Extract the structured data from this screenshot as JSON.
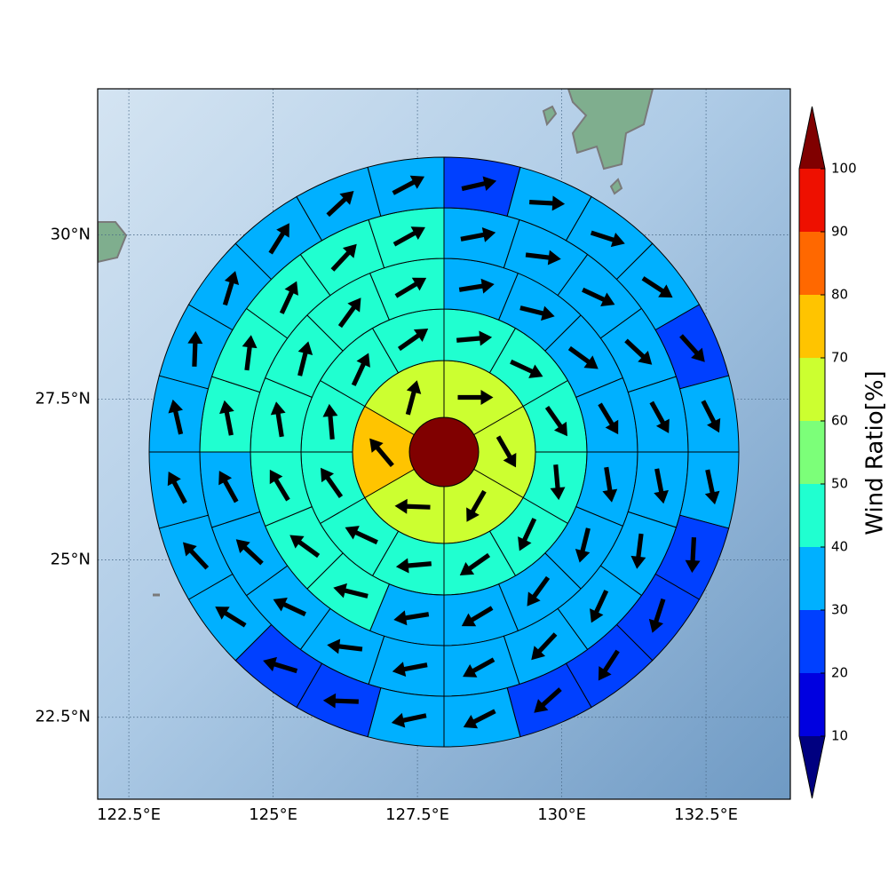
{
  "chart_data": {
    "type": "polar-grid-map",
    "projection": "mercator",
    "xlim": [
      121.96,
      133.96
    ],
    "ylim": [
      21.18,
      32.17
    ],
    "xticks": [
      {
        "value": 122.5,
        "label": "122.5°E"
      },
      {
        "value": 125,
        "label": "125°E"
      },
      {
        "value": 127.5,
        "label": "127.5°E"
      },
      {
        "value": 130,
        "label": "130°E"
      },
      {
        "value": 132.5,
        "label": "132.5°E"
      }
    ],
    "yticks": [
      {
        "value": 22.5,
        "label": "22.5°N"
      },
      {
        "value": 25,
        "label": "25°N"
      },
      {
        "value": 27.5,
        "label": "27.5°N"
      },
      {
        "value": 30,
        "label": "30°N"
      }
    ],
    "grid": true,
    "center": {
      "value": 100
    },
    "rings": [
      {
        "values": [
          65,
          65,
          65,
          65,
          75,
          65
        ],
        "directions": [
          0,
          -60,
          -120,
          178,
          130,
          75
        ]
      },
      {
        "values": [
          45,
          45,
          45,
          45,
          45,
          45,
          45,
          45,
          45,
          45,
          45,
          45
        ],
        "directions": [
          5,
          -25,
          -55,
          -85,
          -115,
          -145,
          -175,
          155,
          125,
          95,
          65,
          35
        ]
      },
      {
        "values": [
          35,
          35,
          35,
          35,
          35,
          35,
          35,
          35,
          35,
          45,
          45,
          45,
          45,
          45,
          45,
          45
        ],
        "directions": [
          9,
          -14,
          -36,
          -59,
          -81,
          -104,
          -126,
          -149,
          -171,
          166,
          144,
          121,
          99,
          76,
          54,
          31
        ]
      },
      {
        "values": [
          35,
          35,
          35,
          35,
          35,
          35,
          35,
          35,
          35,
          35,
          35,
          35,
          35,
          35,
          35,
          45,
          45,
          45,
          45,
          45
        ],
        "directions": [
          11,
          -7,
          -25,
          -43,
          -61,
          -79,
          -97,
          -115,
          -133,
          -151,
          -169,
          173,
          155,
          137,
          119,
          101,
          83,
          65,
          47,
          29
        ]
      },
      {
        "values": [
          25,
          35,
          35,
          35,
          25,
          35,
          35,
          25,
          25,
          25,
          25,
          35,
          35,
          25,
          25,
          35,
          35,
          35,
          35,
          35,
          35,
          35,
          35,
          35
        ],
        "directions": [
          13,
          -3,
          -18,
          -33,
          -48,
          -63,
          -78,
          -93,
          -108,
          -123,
          -138,
          -153,
          -168,
          178,
          163,
          148,
          133,
          118,
          103,
          88,
          73,
          58,
          43,
          28
        ]
      }
    ],
    "colorbar": {
      "label": "Wind Ratio[%]",
      "ticks": [
        10,
        20,
        30,
        40,
        50,
        60,
        70,
        80,
        90,
        100
      ],
      "colors": [
        "#000080",
        "#0000e0",
        "#0040ff",
        "#00b0ff",
        "#20ffd0",
        "#7cff79",
        "#ccff30",
        "#ffc400",
        "#ff6800",
        "#ee1000",
        "#800000"
      ],
      "extend": "both"
    }
  }
}
